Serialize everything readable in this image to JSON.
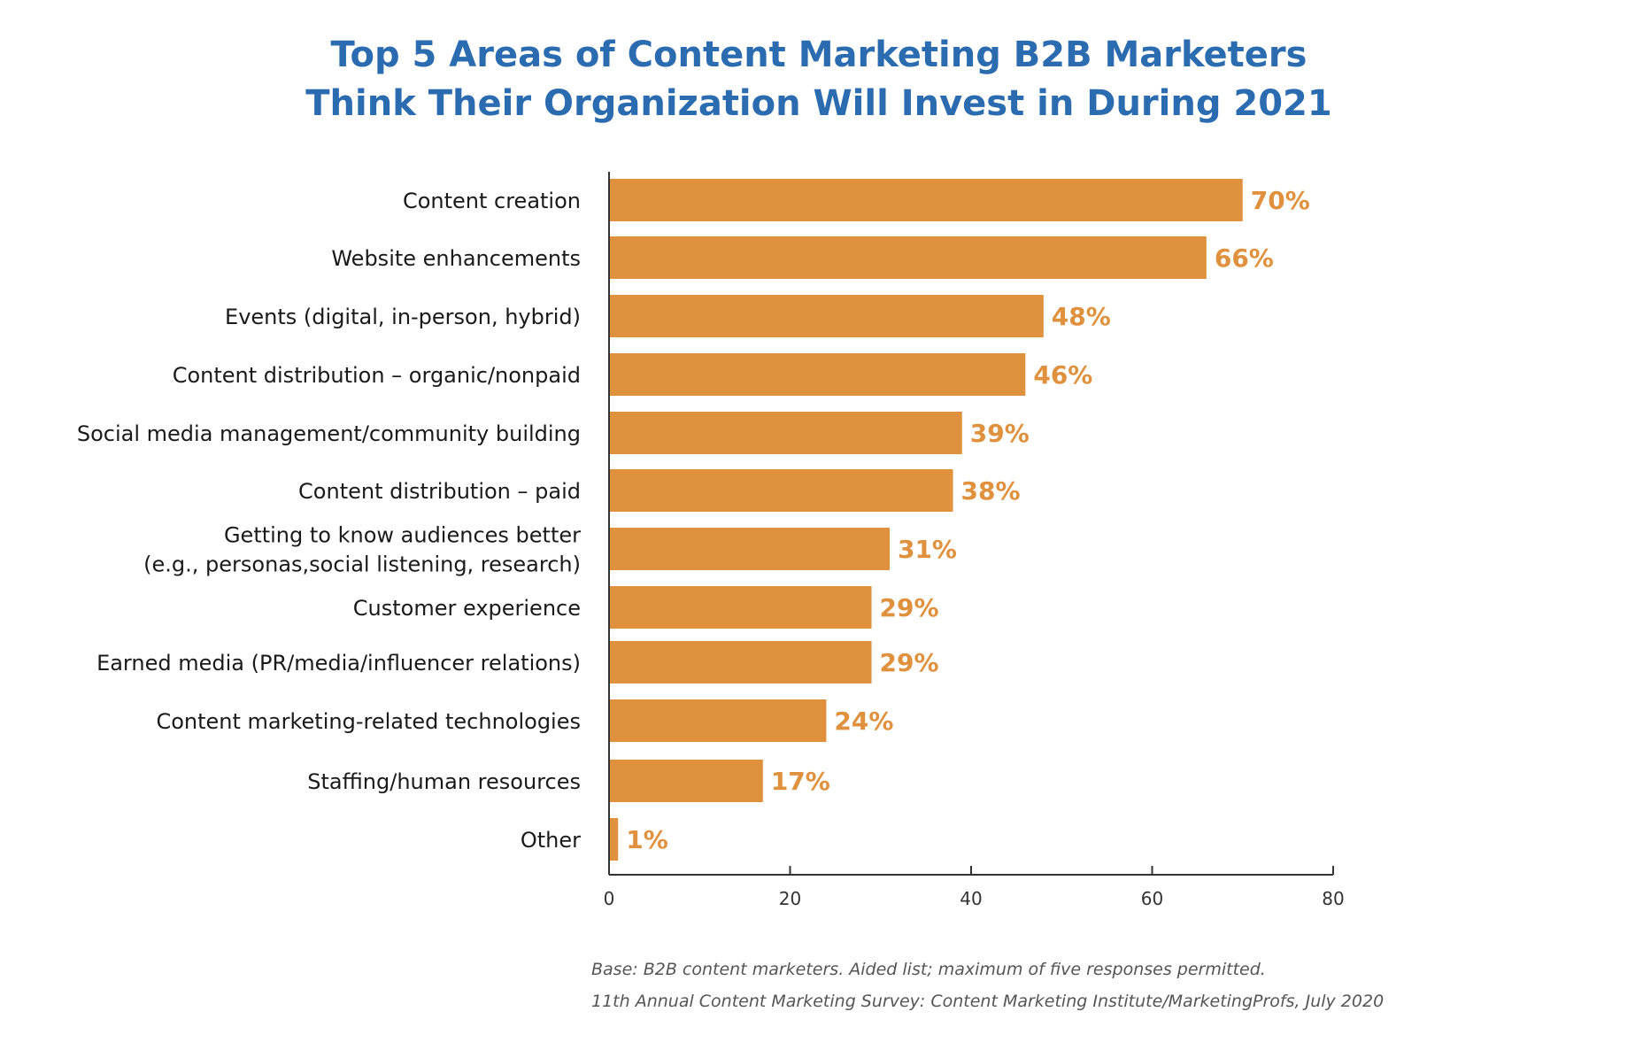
{
  "colors": {
    "title": "#2b6cb0",
    "bar": "#e0913e",
    "value_label": "#e0913e",
    "text": "#1a1a1a",
    "axis": "#333333",
    "note": "#555555"
  },
  "footnote": {
    "base": "Base: B2B content marketers. Aided list; maximum of five responses permitted.",
    "source": "11th Annual Content Marketing Survey: Content Marketing Institute/MarketingProfs, July 2020"
  },
  "chart_data": {
    "type": "bar",
    "orientation": "horizontal",
    "title": "Top 5 Areas of Content Marketing B2B Marketers Think Their Organization Will Invest in During 2021",
    "title_lines": [
      "Top 5 Areas of Content Marketing B2B Marketers",
      "Think Their Organization Will Invest in During 2021"
    ],
    "categories": [
      "Content creation",
      "Website enhancements",
      "Events (digital, in-person, hybrid)",
      "Content distribution – organic/nonpaid",
      "Social media management/community building",
      "Content distribution – paid",
      "Getting to know audiences better (e.g., personas,social listening, research)",
      "Customer experience",
      "Earned media (PR/media/influencer relations)",
      "Content marketing-related technologies",
      "Staffing/human resources",
      "Other"
    ],
    "category_lines": [
      [
        "Content creation"
      ],
      [
        "Website enhancements"
      ],
      [
        "Events (digital, in-person, hybrid)"
      ],
      [
        "Content distribution – organic/nonpaid"
      ],
      [
        "Social media management/community building"
      ],
      [
        "Content distribution – paid"
      ],
      [
        "Getting to know audiences better",
        "(e.g., personas,social listening, research)"
      ],
      [
        "Customer experience"
      ],
      [
        "Earned media (PR/media/influencer relations)"
      ],
      [
        "Content marketing-related technologies"
      ],
      [
        "Staffing/human resources"
      ],
      [
        "Other"
      ]
    ],
    "values": [
      70,
      66,
      48,
      46,
      39,
      38,
      31,
      29,
      29,
      24,
      17,
      1
    ],
    "value_labels": [
      "70%",
      "66%",
      "48%",
      "46%",
      "39%",
      "38%",
      "31%",
      "29%",
      "29%",
      "24%",
      "17%",
      "1%"
    ],
    "x_ticks": [
      0,
      20,
      40,
      60,
      80
    ],
    "xlim": [
      0,
      80
    ],
    "xlabel": "",
    "ylabel": "",
    "grid": false,
    "legend": "none"
  }
}
